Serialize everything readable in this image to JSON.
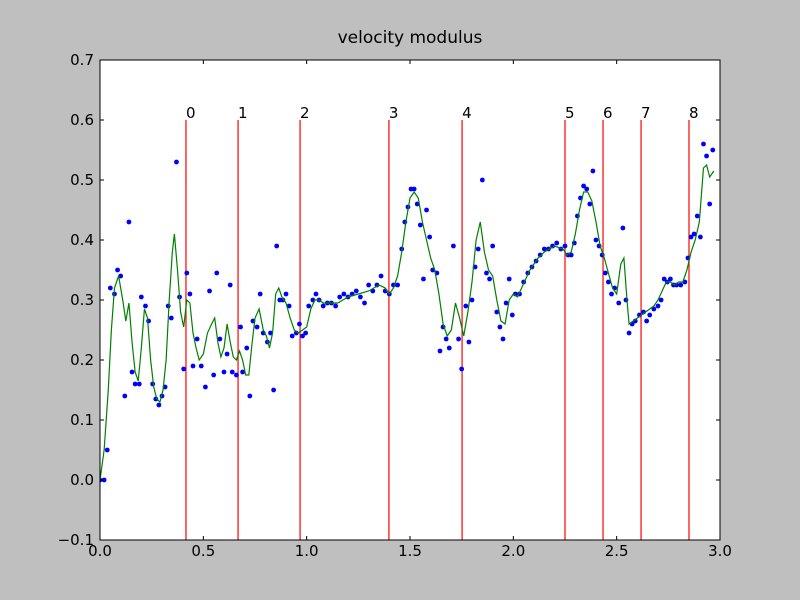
{
  "chart_data": {
    "type": "scatter",
    "title": "velocity modulus",
    "xlim": [
      0,
      3
    ],
    "ylim": [
      -0.1,
      0.7
    ],
    "xticks": [
      {
        "value": 0,
        "label": "0.0"
      },
      0.5,
      {
        "value": 1,
        "label": "1.0"
      },
      1.5,
      {
        "value": 2,
        "label": "2.0"
      },
      2.5,
      {
        "value": 3,
        "label": "3.0"
      }
    ],
    "yticks": [
      {
        "value": -0.1,
        "label": "−0.1"
      },
      {
        "value": 0,
        "label": "0.0"
      },
      0.1,
      0.2,
      0.3,
      0.4,
      0.5,
      0.6,
      0.7
    ],
    "series": [
      {
        "type": "scatter",
        "color": "#0000ff",
        "x": [
          0,
          0.02,
          0.035,
          0.05,
          0.07,
          0.085,
          0.1,
          0.12,
          0.14,
          0.155,
          0.17,
          0.19,
          0.2,
          0.22,
          0.235,
          0.255,
          0.27,
          0.285,
          0.3,
          0.315,
          0.33,
          0.345,
          0.37,
          0.385,
          0.405,
          0.42,
          0.435,
          0.45,
          0.47,
          0.49,
          0.51,
          0.53,
          0.55,
          0.565,
          0.58,
          0.6,
          0.615,
          0.63,
          0.64,
          0.66,
          0.68,
          0.69,
          0.71,
          0.725,
          0.74,
          0.76,
          0.775,
          0.79,
          0.81,
          0.825,
          0.84,
          0.855,
          0.87,
          0.885,
          0.9,
          0.915,
          0.93,
          0.95,
          0.965,
          0.98,
          0.995,
          1.01,
          1.03,
          1.045,
          1.06,
          1.08,
          1.1,
          1.12,
          1.14,
          1.16,
          1.18,
          1.2,
          1.22,
          1.24,
          1.26,
          1.28,
          1.3,
          1.32,
          1.34,
          1.36,
          1.38,
          1.4,
          1.42,
          1.44,
          1.46,
          1.475,
          1.49,
          1.505,
          1.52,
          1.535,
          1.55,
          1.565,
          1.58,
          1.595,
          1.61,
          1.63,
          1.645,
          1.66,
          1.675,
          1.69,
          1.71,
          1.735,
          1.75,
          1.77,
          1.785,
          1.8,
          1.815,
          1.83,
          1.85,
          1.87,
          1.885,
          1.9,
          1.92,
          1.935,
          1.95,
          1.965,
          1.98,
          1.995,
          2.01,
          2.03,
          2.05,
          2.07,
          2.09,
          2.11,
          2.13,
          2.15,
          2.17,
          2.19,
          2.21,
          2.23,
          2.25,
          2.265,
          2.28,
          2.295,
          2.31,
          2.325,
          2.34,
          2.355,
          2.37,
          2.385,
          2.4,
          2.415,
          2.43,
          2.445,
          2.46,
          2.475,
          2.49,
          2.51,
          2.53,
          2.545,
          2.56,
          2.575,
          2.59,
          2.61,
          2.63,
          2.645,
          2.66,
          2.68,
          2.7,
          2.715,
          2.73,
          2.745,
          2.76,
          2.775,
          2.79,
          2.81,
          2.83,
          2.845,
          2.86,
          2.875,
          2.89,
          2.905,
          2.92,
          2.935,
          2.95,
          2.965
        ],
        "y": [
          0,
          0,
          0.05,
          0.32,
          0.31,
          0.35,
          0.34,
          0.14,
          0.43,
          0.18,
          0.16,
          0.16,
          0.305,
          0.29,
          0.265,
          0.16,
          0.135,
          0.125,
          0.14,
          0.155,
          0.29,
          0.27,
          0.53,
          0.305,
          0.185,
          0.345,
          0.31,
          0.19,
          0.235,
          0.19,
          0.155,
          0.315,
          0.175,
          0.345,
          0.235,
          0.18,
          0.21,
          0.325,
          0.18,
          0.175,
          0.255,
          0.18,
          0.22,
          0.14,
          0.265,
          0.255,
          0.31,
          0.245,
          0.23,
          0.245,
          0.15,
          0.39,
          0.3,
          0.3,
          0.31,
          0.29,
          0.24,
          0.245,
          0.26,
          0.24,
          0.245,
          0.29,
          0.3,
          0.31,
          0.3,
          0.29,
          0.295,
          0.295,
          0.29,
          0.305,
          0.31,
          0.305,
          0.31,
          0.315,
          0.305,
          0.295,
          0.325,
          0.315,
          0.325,
          0.34,
          0.315,
          0.31,
          0.325,
          0.325,
          0.385,
          0.43,
          0.455,
          0.485,
          0.485,
          0.46,
          0.425,
          0.335,
          0.45,
          0.405,
          0.35,
          0.345,
          0.215,
          0.255,
          0.235,
          0.22,
          0.39,
          0.235,
          0.185,
          0.29,
          0.23,
          0.3,
          0.355,
          0.385,
          0.5,
          0.345,
          0.335,
          0.39,
          0.28,
          0.255,
          0.235,
          0.295,
          0.335,
          0.275,
          0.31,
          0.31,
          0.33,
          0.345,
          0.355,
          0.365,
          0.375,
          0.385,
          0.385,
          0.39,
          0.395,
          0.385,
          0.39,
          0.375,
          0.375,
          0.395,
          0.44,
          0.47,
          0.49,
          0.485,
          0.46,
          0.515,
          0.4,
          0.39,
          0.375,
          0.345,
          0.33,
          0.31,
          0.32,
          0.295,
          0.42,
          0.3,
          0.245,
          0.26,
          0.265,
          0.275,
          0.28,
          0.265,
          0.275,
          0.285,
          0.29,
          0.3,
          0.335,
          0.33,
          0.335,
          0.325,
          0.325,
          0.325,
          0.33,
          0.37,
          0.405,
          0.41,
          0.44,
          0.405,
          0.56,
          0.54,
          0.46,
          0.55
        ]
      },
      {
        "type": "line",
        "color": "#008000",
        "x": [
          0,
          0.02,
          0.04,
          0.055,
          0.07,
          0.09,
          0.11,
          0.125,
          0.14,
          0.155,
          0.17,
          0.185,
          0.2,
          0.215,
          0.23,
          0.245,
          0.26,
          0.275,
          0.29,
          0.305,
          0.32,
          0.335,
          0.35,
          0.36,
          0.375,
          0.39,
          0.405,
          0.42,
          0.435,
          0.45,
          0.465,
          0.48,
          0.5,
          0.52,
          0.54,
          0.555,
          0.57,
          0.585,
          0.6,
          0.615,
          0.63,
          0.645,
          0.66,
          0.675,
          0.69,
          0.705,
          0.72,
          0.735,
          0.75,
          0.77,
          0.79,
          0.805,
          0.82,
          0.835,
          0.85,
          0.865,
          0.88,
          0.9,
          0.92,
          0.94,
          0.96,
          0.98,
          1,
          1.02,
          1.04,
          1.06,
          1.08,
          1.1,
          1.15,
          1.2,
          1.25,
          1.3,
          1.35,
          1.38,
          1.4,
          1.42,
          1.44,
          1.46,
          1.48,
          1.5,
          1.52,
          1.54,
          1.56,
          1.58,
          1.6,
          1.62,
          1.64,
          1.66,
          1.68,
          1.7,
          1.72,
          1.74,
          1.76,
          1.78,
          1.8,
          1.82,
          1.84,
          1.86,
          1.88,
          1.9,
          1.92,
          1.94,
          1.96,
          1.98,
          2,
          2.02,
          2.04,
          2.06,
          2.08,
          2.1,
          2.12,
          2.15,
          2.2,
          2.24,
          2.26,
          2.28,
          2.3,
          2.32,
          2.34,
          2.36,
          2.38,
          2.4,
          2.42,
          2.44,
          2.46,
          2.48,
          2.5,
          2.52,
          2.535,
          2.55,
          2.56,
          2.58,
          2.6,
          2.62,
          2.64,
          2.66,
          2.68,
          2.7,
          2.72,
          2.74,
          2.76,
          2.78,
          2.8,
          2.82,
          2.84,
          2.86,
          2.88,
          2.9,
          2.92,
          2.935,
          2.95,
          2.97
        ],
        "y": [
          0,
          0.05,
          0.15,
          0.25,
          0.32,
          0.34,
          0.3,
          0.265,
          0.295,
          0.23,
          0.18,
          0.165,
          0.22,
          0.285,
          0.27,
          0.2,
          0.155,
          0.135,
          0.13,
          0.15,
          0.2,
          0.3,
          0.38,
          0.41,
          0.35,
          0.28,
          0.255,
          0.3,
          0.295,
          0.245,
          0.22,
          0.2,
          0.21,
          0.245,
          0.26,
          0.27,
          0.23,
          0.205,
          0.22,
          0.26,
          0.23,
          0.205,
          0.2,
          0.215,
          0.2,
          0.175,
          0.175,
          0.225,
          0.27,
          0.285,
          0.25,
          0.24,
          0.22,
          0.245,
          0.31,
          0.32,
          0.305,
          0.295,
          0.27,
          0.25,
          0.245,
          0.25,
          0.255,
          0.285,
          0.3,
          0.3,
          0.295,
          0.295,
          0.295,
          0.305,
          0.31,
          0.315,
          0.325,
          0.32,
          0.31,
          0.32,
          0.34,
          0.38,
          0.43,
          0.47,
          0.48,
          0.47,
          0.43,
          0.4,
          0.37,
          0.35,
          0.31,
          0.26,
          0.24,
          0.25,
          0.295,
          0.27,
          0.24,
          0.28,
          0.33,
          0.4,
          0.43,
          0.38,
          0.35,
          0.34,
          0.3,
          0.265,
          0.26,
          0.3,
          0.31,
          0.305,
          0.32,
          0.335,
          0.35,
          0.36,
          0.37,
          0.38,
          0.39,
          0.385,
          0.375,
          0.38,
          0.41,
          0.45,
          0.48,
          0.48,
          0.465,
          0.43,
          0.39,
          0.37,
          0.345,
          0.32,
          0.31,
          0.36,
          0.37,
          0.3,
          0.26,
          0.265,
          0.27,
          0.275,
          0.28,
          0.285,
          0.29,
          0.3,
          0.315,
          0.33,
          0.33,
          0.325,
          0.33,
          0.33,
          0.35,
          0.38,
          0.4,
          0.43,
          0.52,
          0.525,
          0.505,
          0.515
        ]
      }
    ],
    "vlines": {
      "color": "#ff0000",
      "ymax": 0.6,
      "x": [
        0.416,
        0.668,
        0.968,
        1.398,
        1.752,
        2.25,
        2.434,
        2.618,
        2.85
      ],
      "labels": [
        "0",
        "1",
        "2",
        "3",
        "4",
        "5",
        "6",
        "7",
        "8"
      ]
    }
  }
}
